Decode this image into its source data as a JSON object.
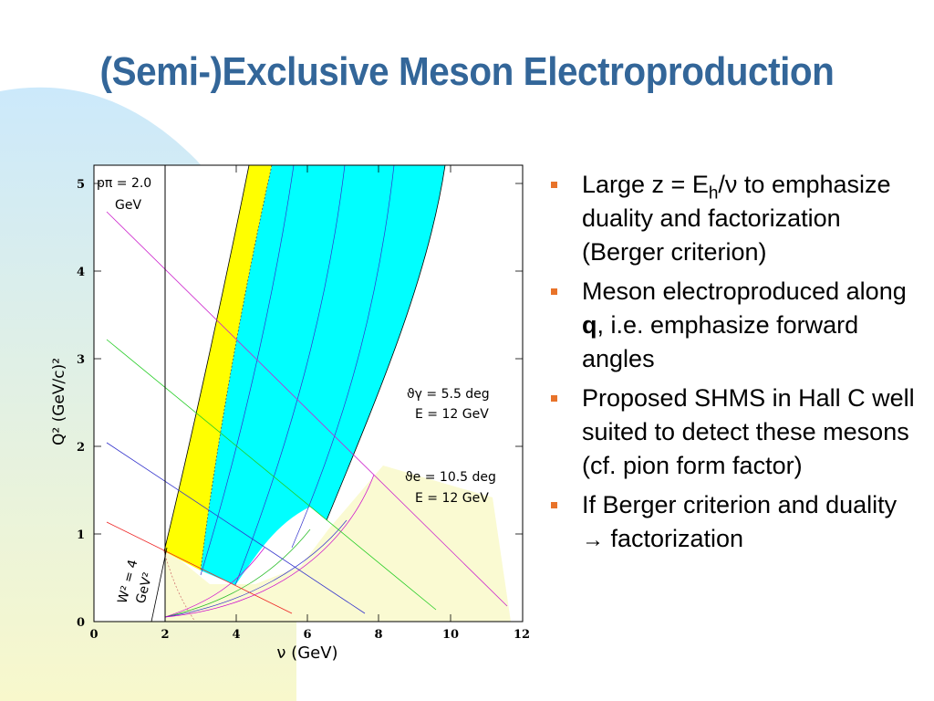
{
  "slide": {
    "title": "(Semi-)Exclusive Meson Electroproduction",
    "colors": {
      "title": "#336699",
      "bullet": "#e8732a"
    }
  },
  "plot": {
    "y_axis_label": "Q² (GeV/c)²",
    "x_axis_label": "ν (GeV)",
    "y_ticks": [
      "0",
      "1",
      "2",
      "3",
      "4",
      "5"
    ],
    "x_ticks": [
      "0",
      "2",
      "4",
      "6",
      "8",
      "10",
      "12"
    ],
    "annotations": {
      "p_pi": "pπ = 2.0",
      "p_pi_unit": "GeV",
      "w2": "W² = 4",
      "w2_unit": "GeV²",
      "theta_gamma": "ϑγ = 5.5 deg",
      "theta_gamma_e": "E = 12 GeV",
      "theta_e": "ϑe = 10.5 deg",
      "theta_e_e": "E = 12 GeV"
    },
    "colors": {
      "yellow_band": "#ffff00",
      "cyan_band": "#00ffff"
    },
    "xlim": [
      0,
      12
    ],
    "ylim": [
      0,
      5
    ]
  },
  "bullets": [
    {
      "parts": {
        "a": "Large z = E",
        "sub": "h",
        "b": "/ν to emphasize duality and factorization (Berger criterion)"
      }
    },
    {
      "parts": {
        "a": "Meson electroproduced along ",
        "bold": "q",
        "b": ", i.e. emphasize forward angles"
      }
    },
    {
      "text": "Proposed SHMS in Hall C well suited to detect these mesons (cf. pion form factor)"
    },
    {
      "parts": {
        "a": "If Berger criterion and duality ",
        "arrow": "→",
        "b": " factorization"
      }
    }
  ]
}
